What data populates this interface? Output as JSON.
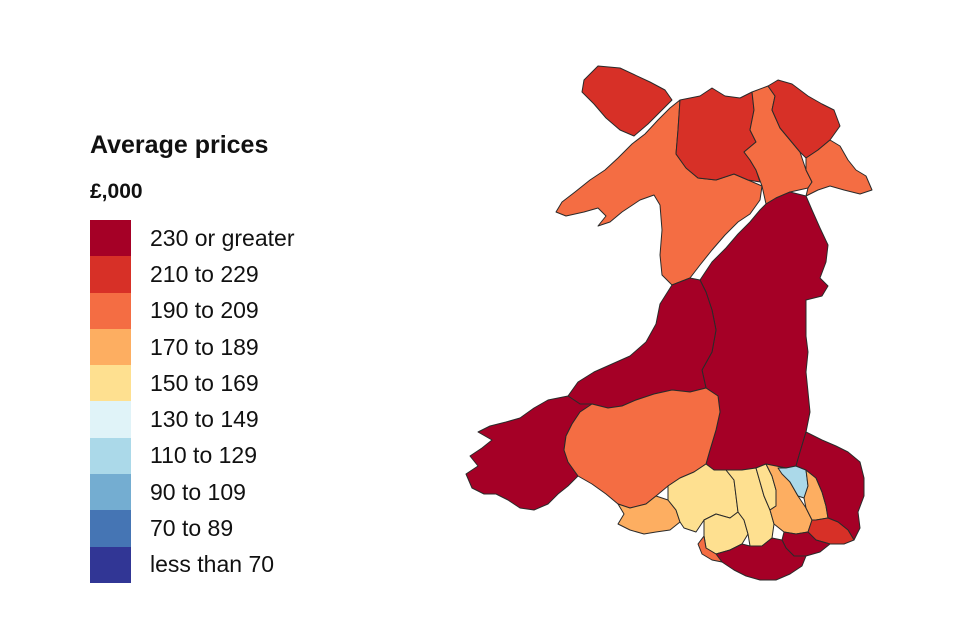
{
  "legend": {
    "title": "Average prices",
    "unit": "£,000",
    "bands": [
      {
        "label": "230 or greater",
        "color": "#a50026"
      },
      {
        "label": "210 to 229",
        "color": "#d73027"
      },
      {
        "label": "190 to 209",
        "color": "#f46d43"
      },
      {
        "label": "170 to 189",
        "color": "#fdae61"
      },
      {
        "label": "150 to 169",
        "color": "#fee090"
      },
      {
        "label": "130 to 149",
        "color": "#e0f3f8"
      },
      {
        "label": "110 to 129",
        "color": "#abd9e9"
      },
      {
        "label": "90 to 109",
        "color": "#74add1"
      },
      {
        "label": "70 to 89",
        "color": "#4575b4"
      },
      {
        "label": "less than 70",
        "color": "#313695"
      }
    ]
  },
  "map": {
    "regions": [
      {
        "id": "anglesey",
        "band": 1
      },
      {
        "id": "gwynedd",
        "band": 2
      },
      {
        "id": "conwy",
        "band": 1
      },
      {
        "id": "denbighshire",
        "band": 2
      },
      {
        "id": "flintshire",
        "band": 1
      },
      {
        "id": "wrexham",
        "band": 2
      },
      {
        "id": "powys",
        "band": 0
      },
      {
        "id": "ceredigion",
        "band": 0
      },
      {
        "id": "pembrokeshire",
        "band": 0
      },
      {
        "id": "carmarthenshire",
        "band": 2
      },
      {
        "id": "swansea",
        "band": 3
      },
      {
        "id": "neath-port-talbot",
        "band": 4
      },
      {
        "id": "bridgend",
        "band": 4
      },
      {
        "id": "vale-of-glamorgan",
        "band": 0
      },
      {
        "id": "cardiff",
        "band": 0
      },
      {
        "id": "rhondda-cynon-taf",
        "band": 4
      },
      {
        "id": "merthyr-tydfil",
        "band": 4
      },
      {
        "id": "caerphilly",
        "band": 3
      },
      {
        "id": "blaenau-gwent",
        "band": 6
      },
      {
        "id": "torfaen",
        "band": 3
      },
      {
        "id": "monmouthshire",
        "band": 0
      },
      {
        "id": "newport",
        "band": 1
      },
      {
        "id": "porthcawl",
        "band": 2
      }
    ]
  }
}
